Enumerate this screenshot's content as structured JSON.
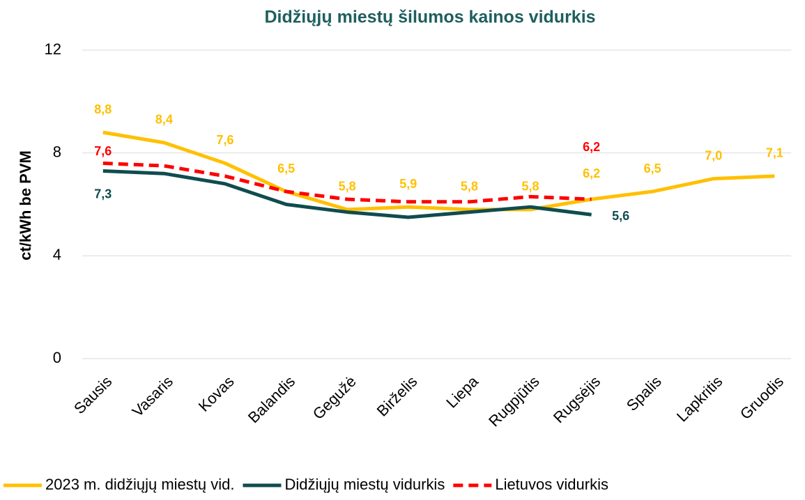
{
  "chart_data": {
    "type": "line",
    "title": "Didžiųjų miestų šilumos kainos vidurkis",
    "y_label": "ct/kWh be PVM",
    "categories": [
      "Sausis",
      "Vasaris",
      "Kovas",
      "Balandis",
      "Gegužė",
      "Birželis",
      "Liepa",
      "Rugpjūtis",
      "Rugsėjis",
      "Spalis",
      "Lapkritis",
      "Gruodis"
    ],
    "series": [
      {
        "name": "2023 m. didžiųjų miestų vid.",
        "color": "#FFC000",
        "dashed": false,
        "values": [
          8.8,
          8.4,
          7.6,
          6.5,
          5.8,
          5.9,
          5.8,
          5.8,
          6.2,
          6.5,
          7.0,
          7.1
        ],
        "value_labels": [
          "8,8",
          "8,4",
          "7,6",
          "6,5",
          "5,8",
          "5,9",
          "5,8",
          "5,8",
          "6,2",
          "6,5",
          "7,0",
          "7,1"
        ]
      },
      {
        "name": "Didžiųjų miestų vidurkis",
        "color": "#0F4C4F",
        "dashed": false,
        "values": [
          7.3,
          7.2,
          6.8,
          6.0,
          5.7,
          5.5,
          5.7,
          5.9,
          5.6,
          null,
          null,
          null
        ],
        "value_labels": [
          "7,3",
          null,
          null,
          null,
          null,
          null,
          null,
          null,
          "5,6",
          null,
          null,
          null
        ]
      },
      {
        "name": "Lietuvos vidurkis",
        "color": "#FF0000",
        "dashed": true,
        "values": [
          7.6,
          7.5,
          7.1,
          6.5,
          6.2,
          6.1,
          6.1,
          6.3,
          6.2,
          null,
          null,
          null
        ],
        "value_labels": [
          "7,6",
          null,
          null,
          null,
          null,
          null,
          null,
          null,
          "6,2",
          null,
          null,
          null
        ]
      }
    ],
    "ylim": [
      0,
      12
    ],
    "yticks": [
      0,
      4,
      8,
      12
    ],
    "grid": true,
    "legend": "bottom"
  }
}
